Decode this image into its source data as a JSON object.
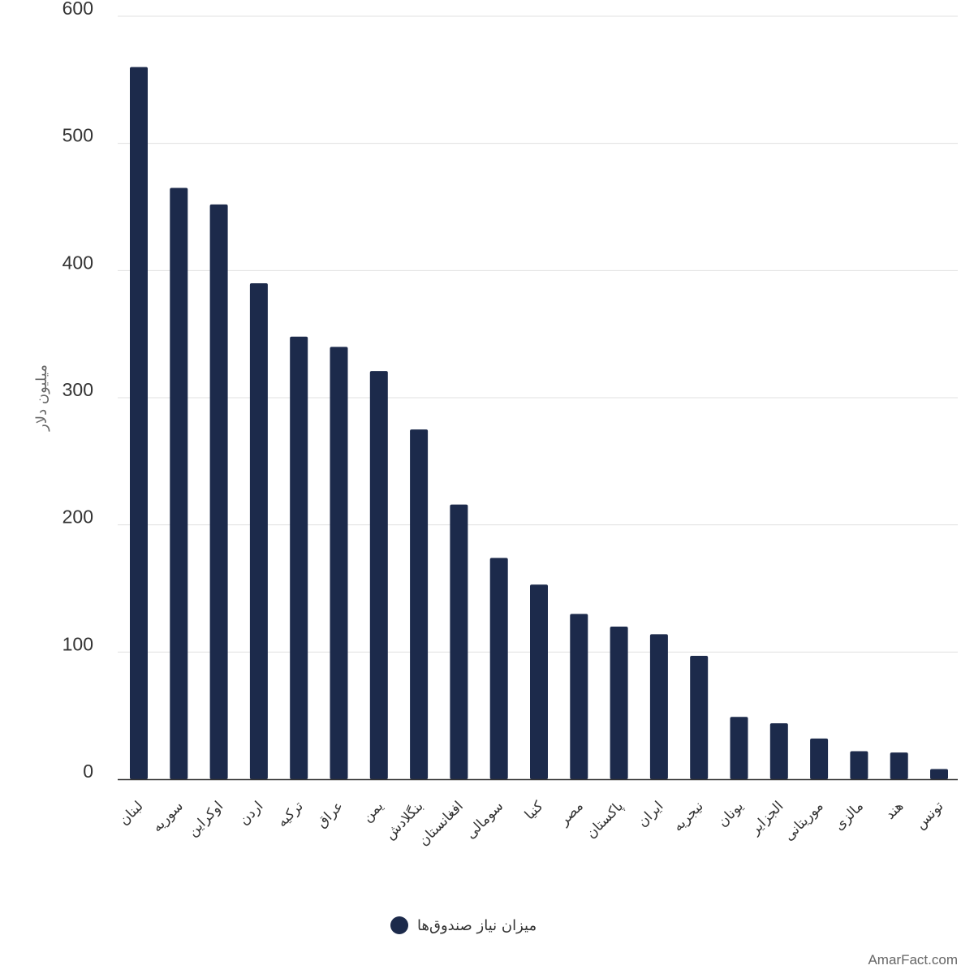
{
  "chart_data": {
    "type": "bar",
    "ylabel": "میلیون دلار",
    "ylim": [
      0,
      600
    ],
    "yticks": [
      0,
      100,
      200,
      300,
      400,
      500,
      600
    ],
    "grid": true,
    "legend_position": "bottom-center",
    "categories": [
      "لبنان",
      "سوریه",
      "اوکراین",
      "اردن",
      "ترکیه",
      "عراق",
      "یمن",
      "بنگلادش",
      "افغانستان",
      "سومالی",
      "کنیا",
      "مصر",
      "پاکستان",
      "ایران",
      "نیجریه",
      "یونان",
      "الجزایر",
      "موریتانی",
      "مالزی",
      "هند",
      "تونس"
    ],
    "series": [
      {
        "name": "میزان نیاز صندوق‌ها",
        "color": "#1c2a4b",
        "values": [
          560,
          465,
          452,
          390,
          348,
          340,
          321,
          275,
          216,
          174,
          153,
          130,
          120,
          114,
          97,
          49,
          44,
          32,
          22,
          21,
          8
        ]
      }
    ]
  },
  "watermark": "AmarFact.com"
}
